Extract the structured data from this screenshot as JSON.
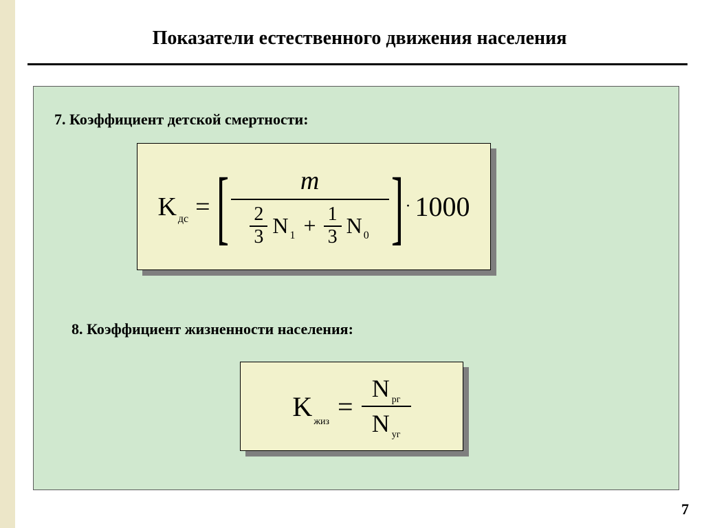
{
  "title": "Показатели естественного движения населения",
  "page_number": "7",
  "colors": {
    "page_bg": "#ffffff",
    "side_stripe": "#ece6c8",
    "panel_bg": "#d0e8cf",
    "formula_bg": "#f2f2cc",
    "shadow": "#7f7f7f",
    "text": "#000000",
    "rule": "#000000"
  },
  "sections": {
    "s7_label": "7. Коэффициент детской смертности:",
    "s8_label": "8. Коэффициент жизненности населения:"
  },
  "formula1": {
    "lhs_symbol": "K",
    "lhs_sub": "дс",
    "eq": "=",
    "numerator": "m",
    "denom_frac1_num": "2",
    "denom_frac1_den": "3",
    "denom_term1_sym": "N",
    "denom_term1_sub": "1",
    "denom_plus": "+",
    "denom_frac2_num": "1",
    "denom_frac2_den": "3",
    "denom_term2_sym": "N",
    "denom_term2_sub": "0",
    "dot": "·",
    "multiplier": "1000"
  },
  "formula2": {
    "lhs_symbol": "K",
    "lhs_sub": "жиз",
    "eq": "=",
    "num_sym": "N",
    "num_sub": "рг",
    "den_sym": "N",
    "den_sub": "уг"
  }
}
